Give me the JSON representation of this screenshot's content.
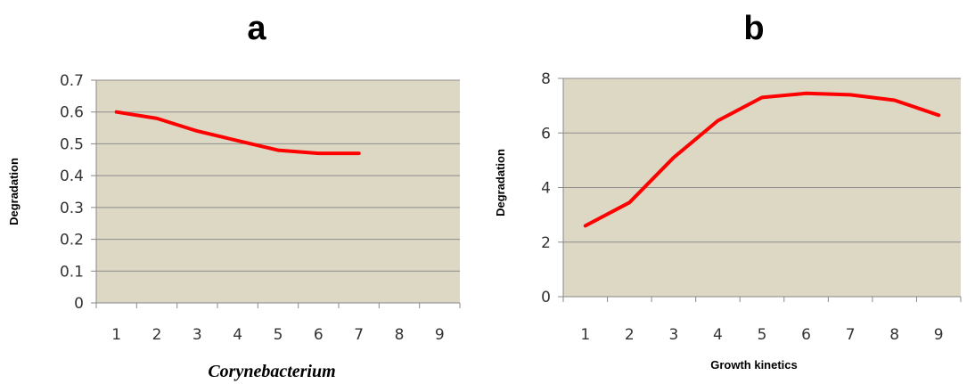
{
  "chart_data": [
    {
      "type": "line",
      "title": "a",
      "xlabel": "Corynebacterium",
      "ylabel": "Degradation",
      "categories": [
        "1",
        "2",
        "3",
        "4",
        "5",
        "6",
        "7",
        "8",
        "9"
      ],
      "series": [
        {
          "values": [
            0.6,
            0.58,
            0.54,
            0.51,
            0.48,
            0.47,
            0.47,
            null,
            null
          ],
          "color": "#ff0000"
        }
      ],
      "ylim": [
        0,
        0.7
      ],
      "yticks": [
        "0",
        "0.1",
        "0.2",
        "0.3",
        "0.4",
        "0.5",
        "0.6",
        "0.7"
      ],
      "plot_background": "#ddd8c4",
      "grid": true,
      "legend": "none"
    },
    {
      "type": "line",
      "title": "b",
      "xlabel": "Growth kinetics",
      "ylabel": "Degradation",
      "categories": [
        "1",
        "2",
        "3",
        "4",
        "5",
        "6",
        "7",
        "8",
        "9"
      ],
      "series": [
        {
          "values": [
            2.6,
            3.45,
            5.1,
            6.45,
            7.3,
            7.45,
            7.4,
            7.2,
            6.65
          ],
          "color": "#ff0000"
        }
      ],
      "ylim": [
        0,
        8
      ],
      "yticks": [
        "0",
        "2",
        "4",
        "6",
        "8"
      ],
      "plot_background": "#ddd8c4",
      "grid": true,
      "legend": "none"
    }
  ]
}
